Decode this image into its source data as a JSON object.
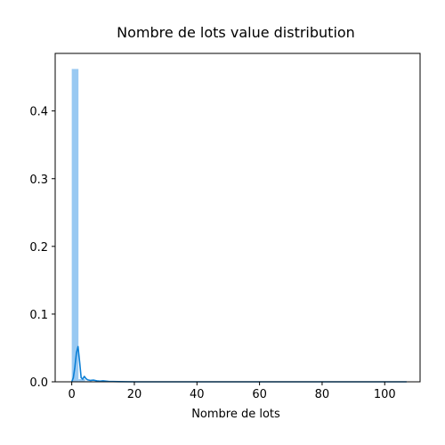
{
  "chart_data": {
    "type": "bar",
    "title": "Nombre de lots value distribution",
    "xlabel": "Nombre de lots",
    "ylabel": "",
    "xlim": [
      -5.3,
      111.3
    ],
    "ylim": [
      0,
      0.485
    ],
    "xticks": [
      0,
      20,
      40,
      60,
      80,
      100
    ],
    "yticks": [
      0.0,
      0.1,
      0.2,
      0.3,
      0.4
    ],
    "xtick_labels": [
      "0",
      "20",
      "40",
      "60",
      "80",
      "100"
    ],
    "ytick_labels": [
      "0.0",
      "0.1",
      "0.2",
      "0.3",
      "0.4"
    ],
    "grid": false,
    "series": [
      {
        "kind": "histogram",
        "color": "#99c9f2",
        "bins": [
          {
            "x0": 0.0,
            "x1": 2.14,
            "value": 0.462
          },
          {
            "x0": 2.14,
            "x1": 4.28,
            "value": 0.004
          },
          {
            "x0": 4.28,
            "x1": 6.42,
            "value": 0.001
          }
        ]
      },
      {
        "kind": "density",
        "color": "#0b7fd6",
        "x": [
          0.0,
          0.5,
          1.0,
          1.5,
          2.0,
          2.5,
          3.0,
          3.5,
          4.0,
          4.5,
          5.0,
          6.0,
          7.0,
          8.0,
          9.0,
          10.0,
          12.0,
          15.0,
          20.0,
          30.0,
          40.0,
          50.0,
          60.0,
          70.0,
          80.0,
          90.0,
          100.0,
          107.0
        ],
        "y": [
          0.0,
          0.006,
          0.022,
          0.043,
          0.052,
          0.03,
          0.006,
          0.004,
          0.008,
          0.005,
          0.003,
          0.002,
          0.0025,
          0.0015,
          0.001,
          0.0015,
          0.0005,
          0.0003,
          0.0,
          0.0,
          0.0,
          0.0,
          0.0,
          0.0,
          0.0,
          0.0,
          0.0,
          0.0
        ]
      }
    ]
  }
}
